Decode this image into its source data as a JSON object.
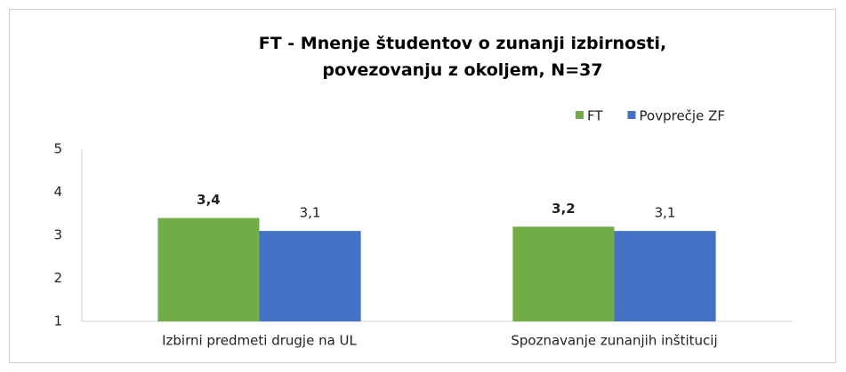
{
  "chart_data": {
    "type": "bar",
    "title": "FT - Mnenje študentov o zunanji izbirnosti, povezovanju z okoljem, N=37",
    "categories": [
      "Izbirni predmeti drugje na UL",
      "Spoznavanje zunanjih inštitucij"
    ],
    "series": [
      {
        "name": "FT",
        "color": "#70ad47",
        "values": [
          3.4,
          3.2
        ],
        "value_labels": [
          "3,4",
          "3,2"
        ]
      },
      {
        "name": "Povprečje ZF",
        "color": "#4472c4",
        "values": [
          3.1,
          3.1
        ],
        "value_labels": [
          "3,1",
          "3,1"
        ]
      }
    ],
    "ylim": [
      1,
      5
    ],
    "yticks": [
      1,
      2,
      3,
      4,
      5
    ],
    "grid": false,
    "legend": "top-right"
  }
}
